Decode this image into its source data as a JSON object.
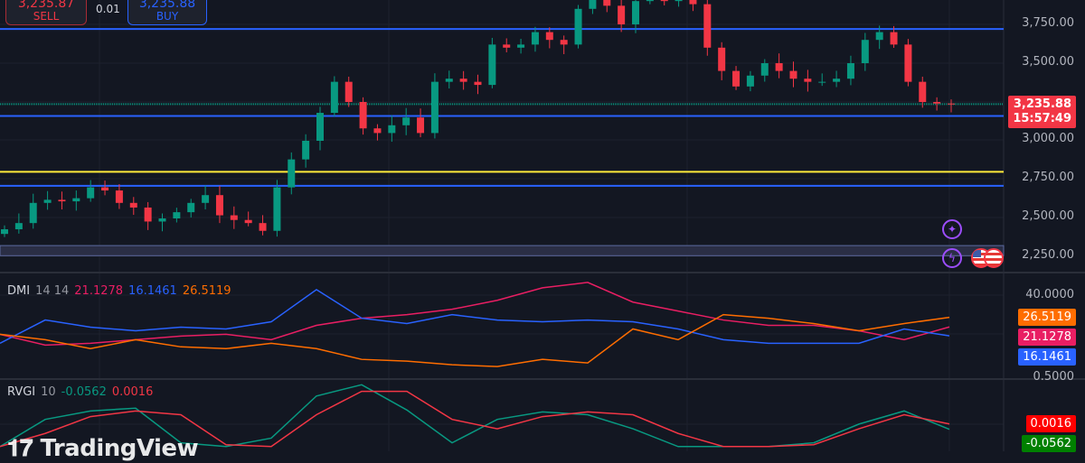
{
  "toolbar": {
    "sell_price": "3,235.87",
    "sell_label": "SELL",
    "quantity": "0.01",
    "buy_price": "3,235.88",
    "buy_label": "BUY"
  },
  "watermark": "TradingView",
  "colors": {
    "up": "#089981",
    "down": "#f23645",
    "background": "#131722",
    "blue_line": "#2962ff",
    "yellow_line": "#ffeb3b",
    "last_price_line": "#089981"
  },
  "chart_data": [
    {
      "type": "candlestick",
      "yticks": [
        "3,750.00",
        "3,500.00",
        "3,000.00",
        "2,750.00",
        "2,500.00",
        "2,250.00"
      ],
      "yvalues": [
        3750,
        3500,
        3000,
        2750,
        2500,
        2250
      ],
      "ylim": [
        2180,
        3900
      ],
      "last_price": "3,235.88",
      "countdown": "15:57:49",
      "horizontal_lines": [
        {
          "value": 3720,
          "color": "#2962ff"
        },
        {
          "value": 3160,
          "color": "#2962ff"
        },
        {
          "value": 2800,
          "color": "#ffeb3b"
        },
        {
          "value": 2710,
          "color": "#2962ff"
        }
      ],
      "zone": [
        2260,
        2325
      ],
      "closes": [
        2430,
        2470,
        2600,
        2620,
        2610,
        2630,
        2700,
        2680,
        2600,
        2570,
        2480,
        2500,
        2540,
        2600,
        2650,
        2520,
        2490,
        2470,
        2420,
        2700,
        2880,
        3000,
        3180,
        3380,
        3250,
        3080,
        3050,
        3100,
        3150,
        3050,
        3380,
        3400,
        3380,
        3360,
        3620,
        3600,
        3620,
        3700,
        3650,
        3620,
        3850,
        3920,
        3870,
        3750,
        3900,
        3920,
        3900,
        3950,
        3880,
        3600,
        3450,
        3350,
        3420,
        3500,
        3450,
        3400,
        3380,
        3380,
        3400,
        3500,
        3650,
        3700,
        3620,
        3380,
        3250,
        3240,
        3236
      ]
    },
    {
      "type": "line",
      "title": "DMI",
      "params": "14 14",
      "ytick": "40.0000",
      "ylim": [
        -8,
        50
      ],
      "series": [
        {
          "name": "21.1278",
          "color": "#e91e63",
          "values": [
            17,
            11,
            12,
            14,
            16,
            17,
            14,
            22,
            26,
            28,
            31,
            36,
            43,
            46,
            35,
            30,
            25,
            22,
            22,
            19,
            14,
            21.1278
          ]
        },
        {
          "name": "16.1461",
          "color": "#2962ff",
          "values": [
            12,
            25,
            21,
            19,
            21,
            20,
            24,
            42,
            26,
            23,
            28,
            25,
            24,
            25,
            24,
            20,
            14,
            12,
            12,
            12,
            20,
            16.1461
          ]
        },
        {
          "name": "26.5119",
          "color": "#ff6d00",
          "values": [
            17,
            14,
            9,
            14,
            10,
            9,
            12,
            9,
            3,
            2,
            0,
            -1,
            3,
            1,
            20,
            14,
            28,
            26,
            23,
            19,
            23,
            26.5119
          ]
        }
      ]
    },
    {
      "type": "line",
      "title": "RVGI",
      "params": "10",
      "ytick": "0.5000",
      "ylim": [
        -0.3,
        0.5
      ],
      "series": [
        {
          "name": "-0.0562",
          "color": "#089981",
          "values": [
            -0.24,
            0.05,
            0.14,
            0.17,
            -0.2,
            -0.24,
            -0.15,
            0.3,
            0.42,
            0.15,
            -0.2,
            0.05,
            0.13,
            0.1,
            -0.05,
            -0.24,
            -0.24,
            -0.24,
            -0.2,
            0.0,
            0.14,
            -0.0562
          ]
        },
        {
          "name": "0.0016",
          "color": "#f23645",
          "values": [
            -0.24,
            -0.1,
            0.08,
            0.14,
            0.1,
            -0.22,
            -0.24,
            0.1,
            0.35,
            0.35,
            0.05,
            -0.05,
            0.08,
            0.13,
            0.1,
            -0.1,
            -0.24,
            -0.24,
            -0.22,
            -0.05,
            0.1,
            0.0016
          ]
        }
      ]
    }
  ]
}
